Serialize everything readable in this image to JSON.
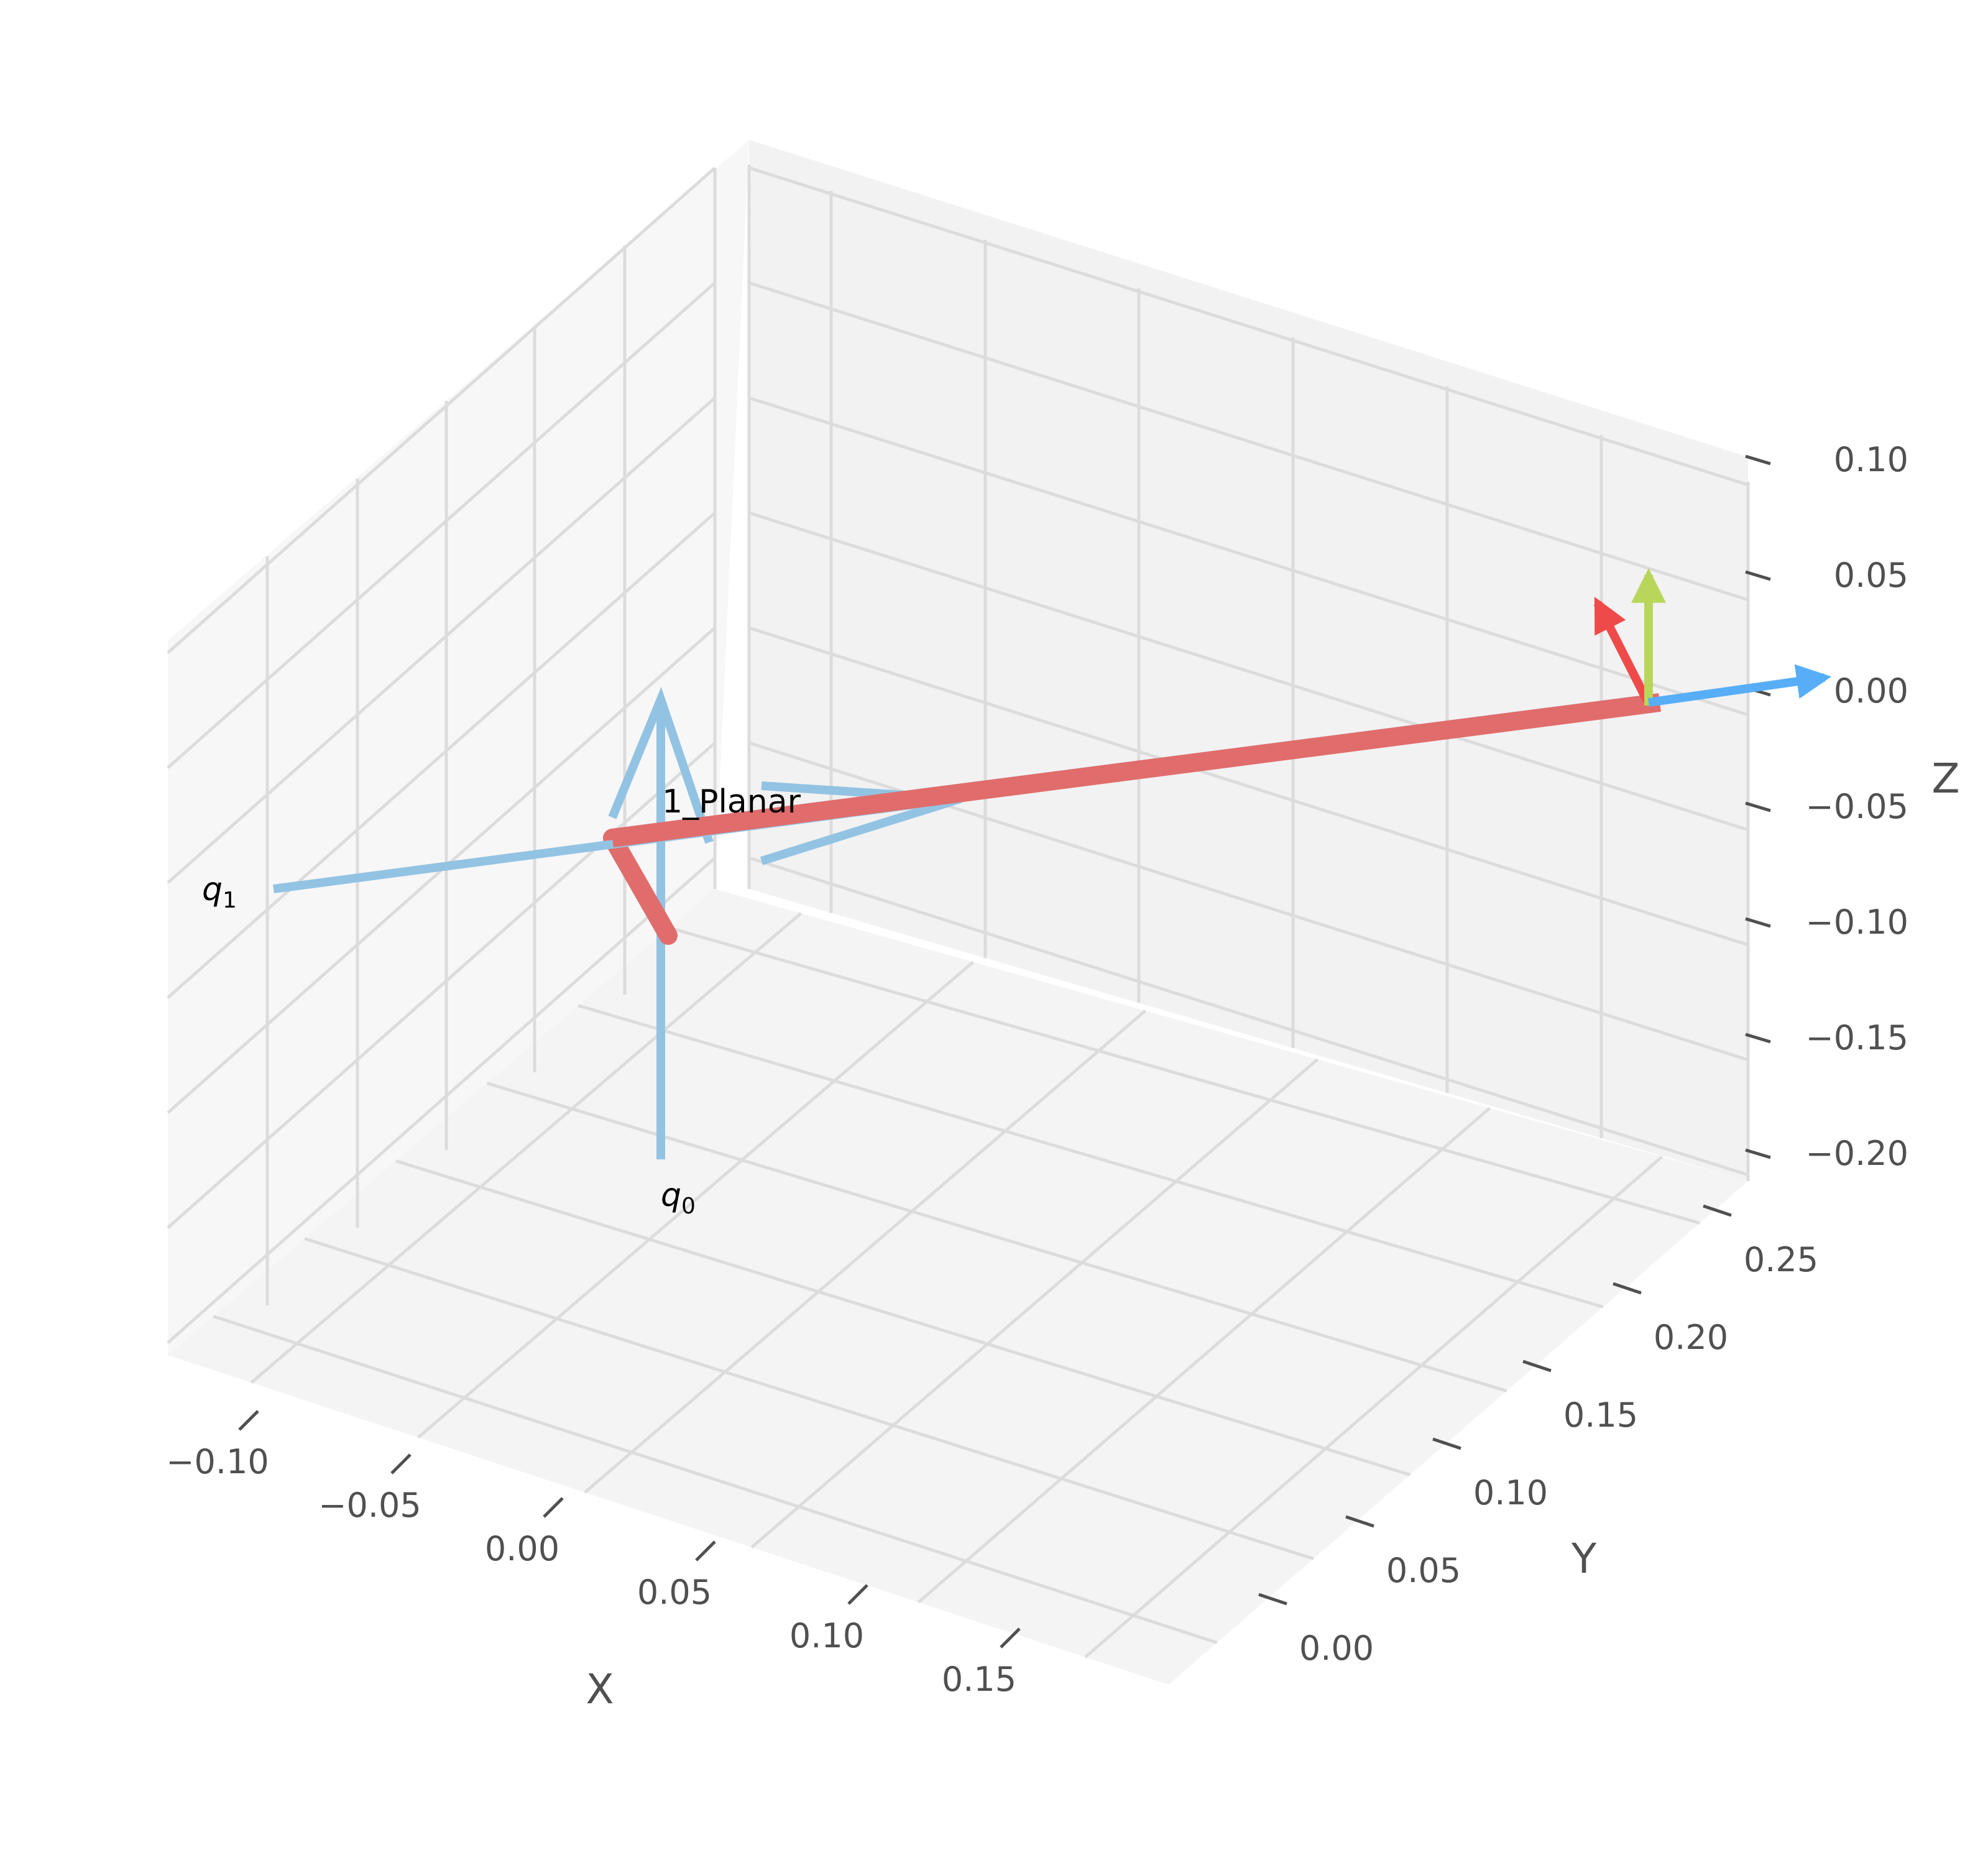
{
  "chart_data": {
    "type": "3d-line",
    "title": "",
    "xlabel": "X",
    "ylabel": "Y",
    "zlabel": "Z",
    "x_ticks": [
      "−0.10",
      "−0.05",
      "0.00",
      "0.05",
      "0.10",
      "0.15"
    ],
    "y_ticks": [
      "0.00",
      "0.05",
      "0.10",
      "0.15",
      "0.20",
      "0.25"
    ],
    "z_ticks": [
      "0.10",
      "0.05",
      "0.00",
      "−0.05",
      "−0.10",
      "−0.15",
      "−0.20"
    ],
    "grid": true,
    "annotations": {
      "robot_name": "1_Planar",
      "joint_0": "q",
      "joint_0_sub": "0",
      "joint_1": "q",
      "joint_1_sub": "1"
    },
    "colors": {
      "link": "#e06c6c",
      "joint_axis": "#93c3e3",
      "frame_x": "#ef4a4a",
      "frame_y": "#57aef7",
      "frame_z": "#b8d65a",
      "pane_left": "#f7f7f7",
      "pane_back": "#f2f2f2",
      "pane_floor": "#f4f4f4",
      "grid": "#dcdcdc"
    }
  }
}
